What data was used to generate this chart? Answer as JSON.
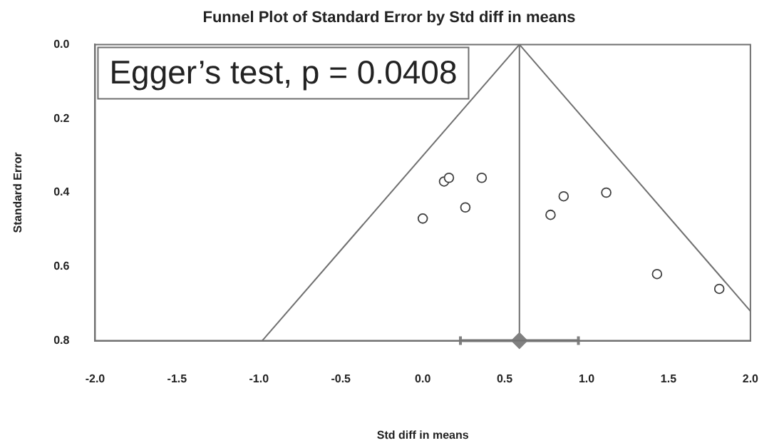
{
  "chart_data": {
    "type": "scatter",
    "title": "Funnel Plot of Standard Error by Std diff in means",
    "xlabel": "Std diff in means",
    "ylabel": "Standard Error",
    "annotations": [
      "Egger’s test, p = 0.0408"
    ],
    "xlim": [
      -2,
      2
    ],
    "xticks": [
      {
        "value": -2,
        "label": "-2.0"
      },
      {
        "value": -1.5,
        "label": "-1.5"
      },
      {
        "value": -1,
        "label": "-1.0"
      },
      {
        "value": -0.5,
        "label": "-0.5"
      },
      {
        "value": 0,
        "label": "0.0"
      },
      {
        "value": 0.5,
        "label": "0.5"
      },
      {
        "value": 1,
        "label": "1.0"
      },
      {
        "value": 1.5,
        "label": "1.5"
      },
      {
        "value": 2,
        "label": "2.0"
      }
    ],
    "ylim": [
      0.8,
      0
    ],
    "yticks": [
      {
        "value": 0,
        "label": "0.0"
      },
      {
        "value": 0.2,
        "label": "0.2"
      },
      {
        "value": 0.4,
        "label": "0.4"
      },
      {
        "value": 0.6,
        "label": "0.6"
      },
      {
        "value": 0.8,
        "label": "0.8"
      }
    ],
    "grid": false,
    "legend": false,
    "ref_lines": [
      {
        "axis": "x",
        "value": 0.59,
        "color": "#707070"
      }
    ],
    "series": [
      {
        "type": "line",
        "color": "#707070",
        "marker": "none",
        "x": [
          -0.98,
          0.59
        ],
        "values": [
          0.8,
          0
        ]
      },
      {
        "type": "line",
        "color": "#707070",
        "marker": "none",
        "x": [
          0.59,
          2
        ],
        "values": [
          0,
          0.72
        ]
      },
      {
        "type": "scatter",
        "color": "#404040",
        "marker": "circle",
        "x": [
          0.0,
          0.13,
          0.16,
          0.36,
          0.26,
          0.78,
          0.86,
          1.12,
          1.43,
          1.81
        ],
        "values": [
          0.47,
          0.37,
          0.36,
          0.36,
          0.44,
          0.46,
          0.41,
          0.4,
          0.62,
          0.66
        ]
      },
      {
        "type": "scatter",
        "color": "#808080",
        "marker": "diamond",
        "x": [
          0.59
        ],
        "values": [
          0.8
        ],
        "xerrors": [
          [
            0.23,
            0.95
          ]
        ]
      }
    ]
  }
}
